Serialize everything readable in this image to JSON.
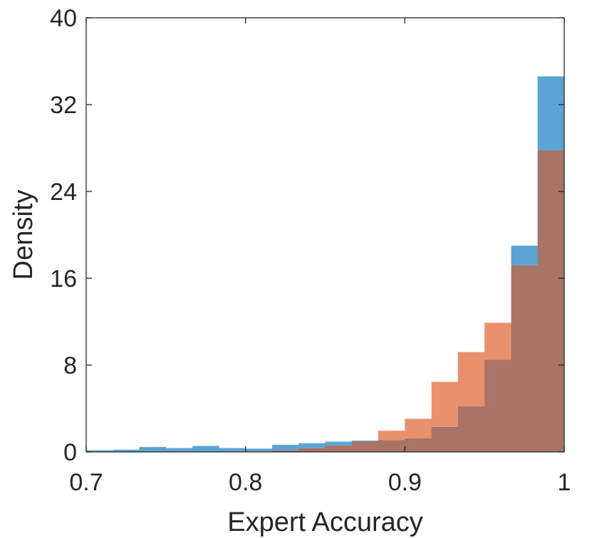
{
  "chart_data": {
    "type": "histogram",
    "xlabel": "Expert Accuracy",
    "ylabel": "Density",
    "xlim": [
      0.7,
      1.0
    ],
    "ylim": [
      0,
      40
    ],
    "x_ticks": [
      0.7,
      0.8,
      0.9,
      1.0
    ],
    "x_tick_labels": [
      "0.7",
      "0.8",
      "0.9",
      "1"
    ],
    "y_ticks": [
      0,
      8,
      16,
      24,
      32,
      40
    ],
    "y_tick_labels": [
      "0",
      "8",
      "16",
      "24",
      "32",
      "40"
    ],
    "grid": false,
    "bin_edges": [
      0.7,
      0.7167,
      0.7333,
      0.75,
      0.7667,
      0.7833,
      0.8,
      0.8167,
      0.8333,
      0.85,
      0.8667,
      0.8833,
      0.9,
      0.9167,
      0.9333,
      0.95,
      0.9667,
      0.9833,
      1.0
    ],
    "series": [
      {
        "color": "#5aa5d6",
        "values": [
          0.15,
          0.2,
          0.45,
          0.35,
          0.55,
          0.35,
          0.3,
          0.65,
          0.8,
          0.95,
          1.05,
          1.1,
          1.25,
          2.3,
          4.2,
          8.5,
          19.0,
          34.6
        ]
      },
      {
        "color": "#e9916d",
        "values": [
          0.0,
          0.0,
          0.0,
          0.0,
          0.0,
          0.0,
          0.05,
          0.15,
          0.35,
          0.6,
          1.0,
          1.95,
          3.05,
          6.45,
          9.2,
          11.9,
          17.2,
          27.8
        ]
      }
    ],
    "overlap_color": "#a87467"
  }
}
